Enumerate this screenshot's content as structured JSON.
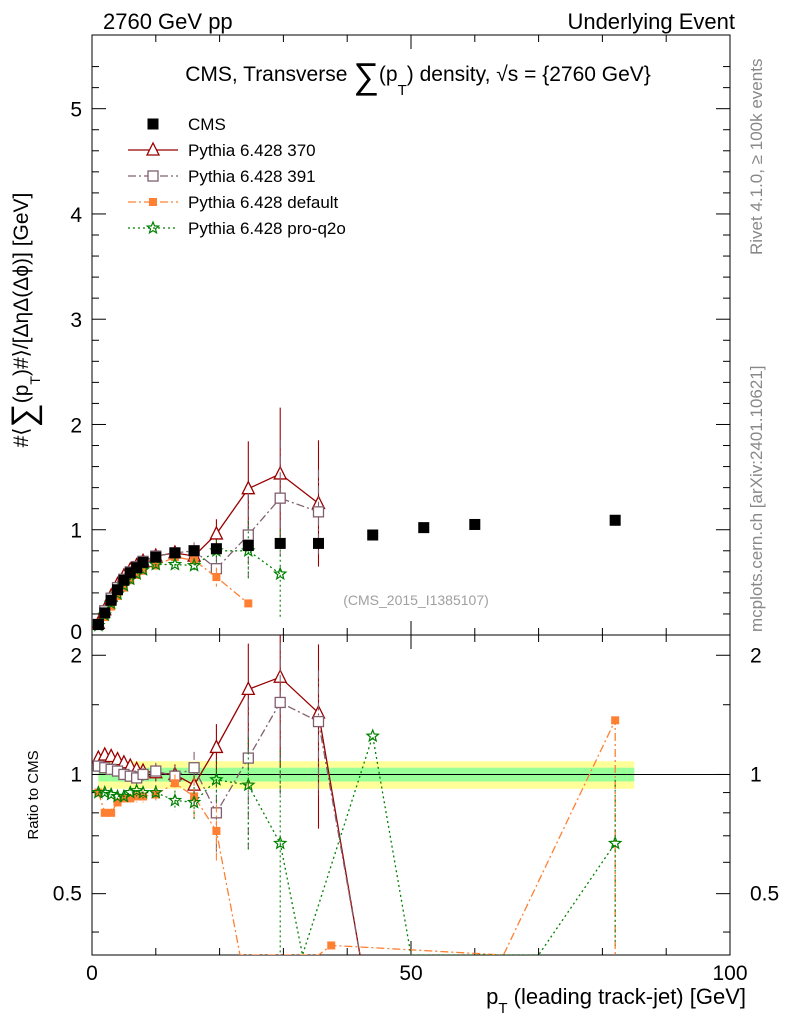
{
  "header": {
    "left": "2760 GeV pp",
    "right": "Underlying Event"
  },
  "side": {
    "rivet": "Rivet 4.1.0, ≥ 100k events",
    "mcplots": "mcplots.cern.ch [arXiv:2401.10621]"
  },
  "chart_data": {
    "type": "scatter",
    "title_parts": {
      "pre": "CMS, Transverse ",
      "sigma": "∑",
      "p": "(p",
      "sub": "T",
      "post": ") density, √s = {2760 GeV}"
    },
    "watermark": "(CMS_2015_I1385107)",
    "xlabel": {
      "main": "p",
      "sub": "T",
      "rest": " (leading track-jet) [GeV]"
    },
    "ylabel": {
      "pre": "#⟨",
      "sigma": "∑",
      "mid": "(p",
      "sub": "T",
      "post": ")#⟩/[ΔηΔ(Δϕ)] [GeV]"
    },
    "ratio_ylabel": "Ratio to CMS",
    "xlim": [
      0,
      100
    ],
    "ylim": [
      0,
      5.7
    ],
    "ratio_ylim": [
      0.35,
      2.25
    ],
    "x_ticks": [
      0,
      50,
      100
    ],
    "x_tick_labels": [
      "0",
      "50",
      "100"
    ],
    "y_ticks": [
      0,
      1,
      2,
      3,
      4,
      5
    ],
    "y_tick_labels": [
      "0",
      "1",
      "2",
      "3",
      "4",
      "5"
    ],
    "ratio_ticks": [
      0.5,
      1,
      2
    ],
    "ratio_tick_labels": [
      "0.5",
      "1",
      "2"
    ],
    "cms": {
      "name": "CMS",
      "color": "#000000",
      "x": [
        1.0,
        2.0,
        3.0,
        4.0,
        5.0,
        6.0,
        7.0,
        8.0,
        10.0,
        13.0,
        16.0,
        19.5,
        24.5,
        29.5,
        35.5,
        44.0,
        52.0,
        60.0,
        82.0
      ],
      "y": [
        0.1,
        0.21,
        0.33,
        0.43,
        0.52,
        0.59,
        0.64,
        0.69,
        0.74,
        0.78,
        0.8,
        0.82,
        0.85,
        0.87,
        0.87,
        0.95,
        1.02,
        1.05,
        1.09
      ],
      "band_inner": [
        0.96,
        1.04
      ],
      "band_outer": [
        0.92,
        1.08
      ]
    },
    "series": [
      {
        "name": "Pythia 6.428 370",
        "color": "#990000",
        "marker": "triangle",
        "dash": "",
        "x": [
          1.0,
          2.0,
          3.0,
          4.0,
          5.0,
          6.0,
          7.0,
          8.0,
          10.0,
          13.0,
          16.0,
          19.5,
          24.5,
          29.5,
          35.5
        ],
        "y": [
          0.11,
          0.24,
          0.37,
          0.48,
          0.56,
          0.62,
          0.66,
          0.7,
          0.75,
          0.78,
          0.75,
          0.96,
          1.39,
          1.53,
          1.25
        ],
        "err": [
          0.01,
          0.01,
          0.02,
          0.02,
          0.02,
          0.02,
          0.03,
          0.03,
          0.04,
          0.05,
          0.08,
          0.14,
          0.45,
          0.63,
          0.6
        ],
        "ratio_x": [
          1.0,
          2.0,
          3.0,
          4.0,
          5.0,
          6.0,
          7.0,
          8.0,
          10.0,
          13.0,
          16.0,
          19.5,
          24.5,
          29.5,
          35.5,
          42.0
        ],
        "ratio": [
          1.1,
          1.12,
          1.11,
          1.09,
          1.07,
          1.05,
          1.03,
          1.02,
          1.01,
          1.0,
          0.94,
          1.17,
          1.64,
          1.76,
          1.43,
          0.35
        ],
        "ratio_err": [
          0.02,
          0.03,
          0.03,
          0.03,
          0.03,
          0.03,
          0.04,
          0.04,
          0.05,
          0.06,
          0.1,
          0.17,
          0.5,
          0.72,
          0.7,
          0.0
        ]
      },
      {
        "name": "Pythia 6.428 391",
        "color": "#806070",
        "marker": "square-open",
        "dash": "8,3,2,3",
        "x": [
          1.0,
          2.0,
          3.0,
          4.0,
          5.0,
          6.0,
          7.0,
          8.0,
          10.0,
          13.0,
          16.0,
          19.5,
          24.5,
          29.5,
          35.5
        ],
        "y": [
          0.1,
          0.23,
          0.35,
          0.45,
          0.53,
          0.6,
          0.65,
          0.7,
          0.75,
          0.78,
          0.8,
          0.63,
          0.95,
          1.3,
          1.17
        ],
        "err": [
          0.01,
          0.01,
          0.02,
          0.02,
          0.02,
          0.02,
          0.03,
          0.03,
          0.04,
          0.05,
          0.08,
          0.12,
          0.4,
          0.55,
          0.4
        ],
        "ratio_x": [
          1.0,
          2.0,
          3.0,
          4.0,
          5.0,
          6.0,
          7.0,
          8.0,
          10.0,
          13.0,
          16.0,
          19.5,
          24.5,
          29.5,
          35.5,
          42.0
        ],
        "ratio": [
          1.05,
          1.04,
          1.03,
          1.02,
          1.0,
          0.99,
          0.98,
          1.0,
          1.02,
          0.99,
          1.04,
          0.8,
          1.1,
          1.52,
          1.36,
          0.35
        ],
        "ratio_err": [
          0.02,
          0.03,
          0.03,
          0.03,
          0.03,
          0.03,
          0.04,
          0.04,
          0.05,
          0.06,
          0.1,
          0.17,
          0.45,
          0.63,
          0.47,
          0.0
        ]
      },
      {
        "name": "Pythia 6.428 default",
        "color": "#ff8033",
        "marker": "square-filled",
        "dash": "8,3,2,3",
        "x": [
          1.0,
          2.0,
          3.0,
          4.0,
          5.0,
          6.0,
          7.0,
          8.0,
          10.0,
          13.0,
          16.0,
          19.5,
          24.5
        ],
        "y": [
          0.09,
          0.17,
          0.27,
          0.37,
          0.45,
          0.52,
          0.57,
          0.61,
          0.66,
          0.74,
          0.71,
          0.55,
          0.3
        ],
        "err": [
          0.01,
          0.01,
          0.02,
          0.02,
          0.02,
          0.02,
          0.03,
          0.03,
          0.04,
          0.05,
          0.08,
          0.09,
          0.03
        ],
        "ratio_x": [
          1.0,
          2.0,
          3.0,
          4.0,
          5.0,
          6.0,
          7.0,
          8.0,
          10.0,
          13.0,
          16.0,
          19.5,
          23.2,
          35.5,
          37.5,
          64.5,
          82.0,
          82.0
        ],
        "ratio": [
          0.9,
          0.8,
          0.8,
          0.85,
          0.87,
          0.87,
          0.88,
          0.88,
          0.89,
          0.95,
          0.88,
          0.72,
          0.35,
          0.35,
          0.37,
          0.35,
          1.37,
          0.35
        ],
        "ratio_err": [
          0.02,
          0.02,
          0.02,
          0.02,
          0.02,
          0.02,
          0.03,
          0.03,
          0.04,
          0.05,
          0.1,
          0.12,
          0.0,
          0.0,
          0.0,
          0.0,
          0.0,
          0.0
        ]
      },
      {
        "name": "Pythia 6.428 pro-q2o",
        "color": "#008000",
        "marker": "star",
        "dash": "2,3",
        "x": [
          1.0,
          2.0,
          3.0,
          4.0,
          5.0,
          6.0,
          7.0,
          8.0,
          10.0,
          13.0,
          16.0,
          19.5,
          24.5,
          29.5
        ],
        "y": [
          0.09,
          0.19,
          0.3,
          0.39,
          0.47,
          0.53,
          0.58,
          0.62,
          0.67,
          0.67,
          0.66,
          0.8,
          0.8,
          0.58
        ],
        "err": [
          0.01,
          0.01,
          0.02,
          0.02,
          0.02,
          0.02,
          0.03,
          0.03,
          0.04,
          0.05,
          0.07,
          0.1,
          0.28,
          0.42
        ],
        "ratio_x": [
          1.0,
          2.0,
          3.0,
          4.0,
          5.0,
          6.0,
          7.0,
          8.0,
          10.0,
          13.0,
          16.0,
          19.5,
          24.5,
          29.5,
          33.0,
          44.0,
          50.0,
          70.0,
          82.0
        ],
        "ratio": [
          0.9,
          0.9,
          0.89,
          0.88,
          0.88,
          0.9,
          0.91,
          0.9,
          0.9,
          0.86,
          0.85,
          0.97,
          0.94,
          0.67,
          0.35,
          1.25,
          0.35,
          0.35,
          0.67
        ],
        "ratio_err": [
          0.02,
          0.02,
          0.02,
          0.02,
          0.02,
          0.02,
          0.03,
          0.03,
          0.04,
          0.05,
          0.08,
          0.12,
          0.3,
          0.48,
          0.0,
          0.0,
          0.0,
          0.0,
          0.3
        ]
      }
    ]
  }
}
